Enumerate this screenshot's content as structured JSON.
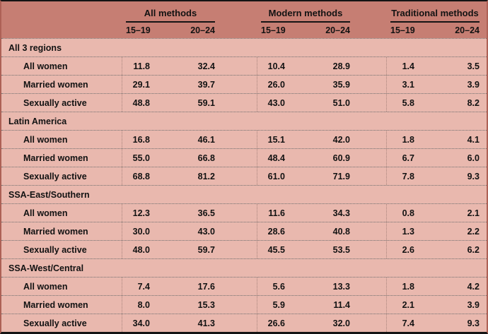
{
  "styles": {
    "header_bg": "#c67e73",
    "body_bg": "#e9b8ae",
    "side_border": "#ad6156",
    "top_bottom_border": "#141414",
    "row_divider": "#6f6f6f",
    "text": "#121212"
  },
  "chart_data": {
    "type": "table",
    "title": "",
    "column_groups": [
      {
        "label": "All methods"
      },
      {
        "label": "Modern methods"
      },
      {
        "label": "Traditional methods"
      }
    ],
    "age_columns": [
      "15–19",
      "20–24"
    ],
    "columns": [
      "",
      "All methods 15–19",
      "All methods 20–24",
      "Modern methods 15–19",
      "Modern methods 20–24",
      "Traditional methods 15–19",
      "Traditional methods 20–24"
    ],
    "sections": [
      {
        "name": "All 3 regions",
        "rows": [
          {
            "label": "All women",
            "values": [
              "11.8",
              "32.4",
              "10.4",
              "28.9",
              "1.4",
              "3.5"
            ]
          },
          {
            "label": "Married women",
            "values": [
              "29.1",
              "39.7",
              "26.0",
              "35.9",
              "3.1",
              "3.9"
            ]
          },
          {
            "label": "Sexually active",
            "values": [
              "48.8",
              "59.1",
              "43.0",
              "51.0",
              "5.8",
              "8.2"
            ]
          }
        ]
      },
      {
        "name": "Latin America",
        "rows": [
          {
            "label": "All women",
            "values": [
              "16.8",
              "46.1",
              "15.1",
              "42.0",
              "1.8",
              "4.1"
            ]
          },
          {
            "label": "Married women",
            "values": [
              "55.0",
              "66.8",
              "48.4",
              "60.9",
              "6.7",
              "6.0"
            ]
          },
          {
            "label": "Sexually active",
            "values": [
              "68.8",
              "81.2",
              "61.0",
              "71.9",
              "7.8",
              "9.3"
            ]
          }
        ]
      },
      {
        "name": "SSA-East/Southern",
        "rows": [
          {
            "label": "All women",
            "values": [
              "12.3",
              "36.5",
              "11.6",
              "34.3",
              "0.8",
              "2.1"
            ]
          },
          {
            "label": "Married women",
            "values": [
              "30.0",
              "43.0",
              "28.6",
              "40.8",
              "1.3",
              "2.2"
            ]
          },
          {
            "label": "Sexually active",
            "values": [
              "48.0",
              "59.7",
              "45.5",
              "53.5",
              "2.6",
              "6.2"
            ]
          }
        ]
      },
      {
        "name": "SSA-West/Central",
        "rows": [
          {
            "label": "All women",
            "values": [
              "7.4",
              "17.6",
              "5.6",
              "13.3",
              "1.8",
              "4.2"
            ]
          },
          {
            "label": "Married women",
            "values": [
              "8.0",
              "15.3",
              "5.9",
              "11.4",
              "2.1",
              "3.9"
            ]
          },
          {
            "label": "Sexually active",
            "values": [
              "34.0",
              "41.3",
              "26.6",
              "32.0",
              "7.4",
              "9.3"
            ]
          }
        ]
      }
    ]
  }
}
